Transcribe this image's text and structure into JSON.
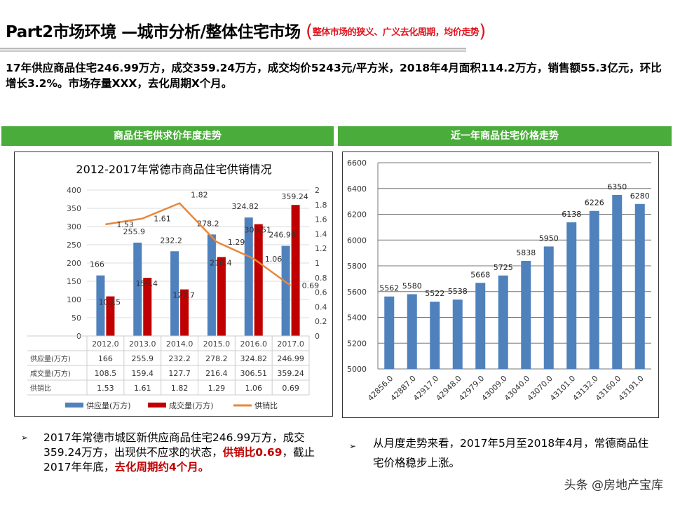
{
  "header": {
    "title": "Part2市场环境 —城市分析/整体住宅市场",
    "subtitle_open": "(",
    "subtitle": "整体市场的狭义、广义去化周期，均价走势",
    "subtitle_close": ")"
  },
  "summary": "17年供应商品住宅246.99万方，成交359.24万方，成交均价5243元/平方米，2018年4月面积114.2万方，销售额55.3亿元，环比增长3.2%。市场存量XXX，去化周期X个月。",
  "bands": {
    "left": "商品住宅供求价年度走势",
    "right": "近一年商品住宅价格走势"
  },
  "colors": {
    "supply": "#4f81bd",
    "deal": "#c00000",
    "ratio": "#e8873a",
    "band": "#4aac3a"
  },
  "chart_data": [
    {
      "type": "bar+line",
      "title": "2012-2017年常德市商品住宅供销情况",
      "categories": [
        "2012.0",
        "2013.0",
        "2014.0",
        "2015.0",
        "2016.0",
        "2017.0"
      ],
      "series": [
        {
          "name": "供应量(万方)",
          "axis": "left",
          "type": "bar",
          "values": [
            166,
            255.9,
            232.2,
            278.2,
            324.82,
            246.99
          ]
        },
        {
          "name": "成交量(万方)",
          "axis": "left",
          "type": "bar",
          "values": [
            108.5,
            159.4,
            127.7,
            216.4,
            306.51,
            359.24
          ]
        },
        {
          "name": "供销比",
          "axis": "right",
          "type": "line",
          "values": [
            1.53,
            1.61,
            1.82,
            1.29,
            1.06,
            0.69
          ]
        }
      ],
      "ylim": [
        0,
        400
      ],
      "yticks": [
        0,
        50,
        100,
        150,
        200,
        250,
        300,
        350,
        400
      ],
      "y2lim": [
        0,
        2
      ],
      "y2ticks": [
        "0",
        "0.2",
        "0.4",
        "0.6",
        "0.8",
        "1",
        "1.2",
        "1.4",
        "1.6",
        "1.8",
        "2"
      ],
      "data_table": true,
      "legend": "bottom",
      "grid": true
    },
    {
      "type": "bar",
      "categories": [
        "42856.0",
        "42887.0",
        "42917.0",
        "42948.0",
        "42979.0",
        "43009.0",
        "43040.0",
        "43070.0",
        "43101.0",
        "43132.0",
        "43160.0",
        "43191.0"
      ],
      "values": [
        5562,
        5580,
        5522,
        5538,
        5668,
        5725,
        5838,
        5950,
        6138,
        6226,
        6350,
        6280
      ],
      "ylim": [
        5000,
        6600
      ],
      "yticks": [
        5000,
        5200,
        5400,
        5600,
        5800,
        6000,
        6200,
        6400,
        6600
      ],
      "grid": true,
      "legend": "none"
    }
  ],
  "bullets": {
    "marker": "➢",
    "left": {
      "t1": "2017年常德市城区新供应商品住宅246.99万方，成交359.24万方，出现供不应求的状态，",
      "r1": "供销比0.69",
      "t2": "，截止2017年年底，",
      "r2": "去化周期约4个月。"
    },
    "right": "从月度走势来看，2017年5月至2018年4月，常德商品住宅价格稳步上涨。"
  },
  "watermark": "头条 @房地产宝库"
}
